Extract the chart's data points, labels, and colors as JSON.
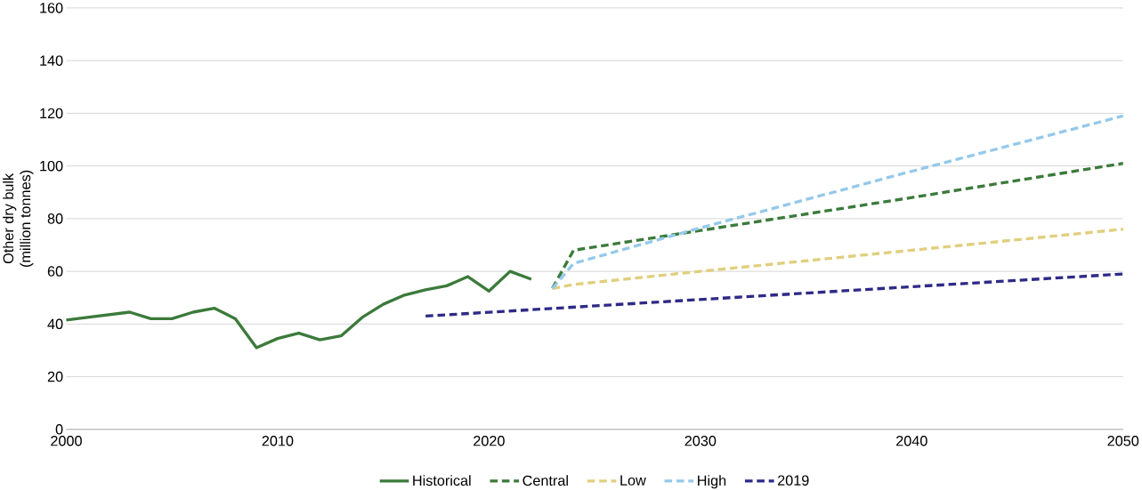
{
  "chart_data": {
    "type": "line",
    "ylabel": "Other dry bulk\n(million tonnes)",
    "xlim": [
      2000,
      2050
    ],
    "xticks": [
      2000,
      2010,
      2020,
      2030,
      2040,
      2050
    ],
    "ylim": [
      0,
      160
    ],
    "yticks": [
      0,
      20,
      40,
      60,
      80,
      100,
      120,
      140,
      160
    ],
    "grid": "y",
    "legend": "bottom",
    "marker": "none",
    "series": [
      {
        "name": "Historical",
        "color": "#3b7a3b",
        "line_style": "solid",
        "x": [
          2000,
          2001,
          2002,
          2003,
          2004,
          2005,
          2006,
          2007,
          2008,
          2009,
          2010,
          2011,
          2012,
          2013,
          2014,
          2015,
          2016,
          2017,
          2018,
          2019,
          2020,
          2021,
          2022
        ],
        "values": [
          41.5,
          42.5,
          43.5,
          44.5,
          42,
          42,
          44.5,
          46,
          42,
          31,
          34.5,
          36.5,
          34,
          35.5,
          42.5,
          47.5,
          51,
          53,
          54.5,
          58,
          52.5,
          60,
          57
        ]
      },
      {
        "name": "Central",
        "color": "#3b7a3b",
        "line_style": "dashed",
        "x": [
          2023,
          2024,
          2030,
          2040,
          2050
        ],
        "values": [
          53.5,
          68,
          75.5,
          88,
          101
        ]
      },
      {
        "name": "Low",
        "color": "#e0cf7e",
        "line_style": "dashed",
        "x": [
          2023,
          2024,
          2030,
          2040,
          2050
        ],
        "values": [
          53.5,
          55,
          60,
          68,
          76
        ]
      },
      {
        "name": "High",
        "color": "#95c9ea",
        "line_style": "dashed",
        "x": [
          2023,
          2024,
          2030,
          2040,
          2050
        ],
        "values": [
          53.5,
          63,
          76.5,
          98,
          119
        ]
      },
      {
        "name": "2019",
        "color": "#2e2a87",
        "line_style": "dashed",
        "x": [
          2017,
          2050
        ],
        "values": [
          43,
          59
        ]
      }
    ]
  }
}
